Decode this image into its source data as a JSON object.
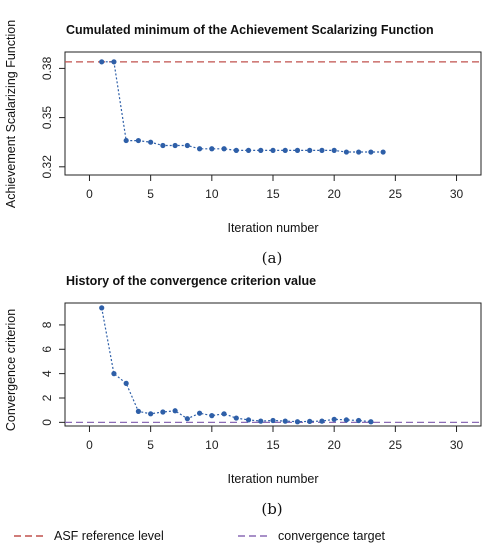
{
  "chart_data": [
    {
      "type": "line",
      "title": "Cumulated minimum of the Achievement Scalarizing Function",
      "xlabel": "Iteration number",
      "ylabel": "Achievement Scalarizing Function",
      "xlim": [
        -2,
        32
      ],
      "ylim": [
        0.315,
        0.39
      ],
      "xticks": [
        "0",
        "5",
        "10",
        "15",
        "20",
        "25",
        "30"
      ],
      "yticks": [
        "0.32",
        "0.35",
        "0.38"
      ],
      "series": [
        {
          "x": [
            1,
            2,
            3,
            4,
            5,
            6,
            7,
            8,
            9,
            10,
            11,
            12,
            13,
            14,
            15,
            16,
            17,
            18,
            19,
            20,
            21,
            22,
            23,
            24
          ],
          "y": [
            0.384,
            0.384,
            0.336,
            0.336,
            0.335,
            0.333,
            0.333,
            0.333,
            0.331,
            0.331,
            0.331,
            0.33,
            0.33,
            0.33,
            0.33,
            0.33,
            0.33,
            0.33,
            0.33,
            0.33,
            0.329,
            0.329,
            0.329,
            0.329
          ]
        }
      ],
      "reference_line": {
        "y": 0.384,
        "legend_key": 0
      },
      "caption": "(a)"
    },
    {
      "type": "line",
      "title": "History of the convergence criterion value",
      "xlabel": "Iteration number",
      "ylabel": "Convergence criterion",
      "xlim": [
        -2,
        32
      ],
      "ylim": [
        -0.3,
        9.8
      ],
      "xticks": [
        "0",
        "5",
        "10",
        "15",
        "20",
        "25",
        "30"
      ],
      "yticks": [
        "0",
        "2",
        "4",
        "6",
        "8"
      ],
      "series": [
        {
          "x": [
            1,
            2,
            3,
            4,
            5,
            6,
            7,
            8,
            9,
            10,
            11,
            12,
            13,
            14,
            15,
            16,
            17,
            18,
            19,
            20,
            21,
            22,
            23
          ],
          "y": [
            9.4,
            4.0,
            3.2,
            0.9,
            0.7,
            0.85,
            0.95,
            0.3,
            0.75,
            0.55,
            0.7,
            0.35,
            0.2,
            0.1,
            0.15,
            0.1,
            0.05,
            0.08,
            0.1,
            0.25,
            0.2,
            0.15,
            0.05
          ]
        }
      ],
      "reference_line": {
        "y": 0.0,
        "legend_key": 1
      },
      "caption": "(b)"
    }
  ],
  "legend": [
    {
      "label": "ASF reference level",
      "color": "#c0504d"
    },
    {
      "label": "convergence target",
      "color": "#8b6bb5"
    }
  ],
  "colors": {
    "series": "#2e5fa8",
    "axis": "#222222"
  }
}
